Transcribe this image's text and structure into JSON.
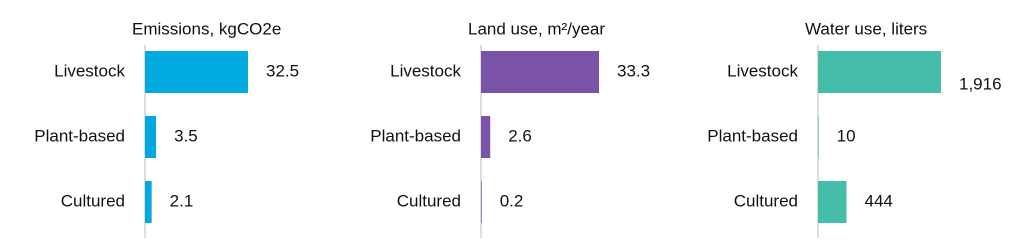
{
  "chart_data": [
    {
      "type": "bar",
      "orientation": "horizontal",
      "title": "Emissions, kgCO2e",
      "categories": [
        "Livestock",
        "Plant-based",
        "Cultured"
      ],
      "values": [
        32.5,
        3.5,
        2.1
      ],
      "color": "#00a9e0"
    },
    {
      "type": "bar",
      "orientation": "horizontal",
      "title": "Land use, m²/year",
      "categories": [
        "Livestock",
        "Plant-based",
        "Cultured"
      ],
      "values": [
        33.3,
        2.6,
        0.2
      ],
      "color": "#7a52a6"
    },
    {
      "type": "bar",
      "orientation": "horizontal",
      "title": "Water use, liters",
      "categories": [
        "Livestock",
        "Plant-based",
        "Cultured"
      ],
      "values": [
        1916,
        10,
        444
      ],
      "value_labels": [
        "1,916",
        "10",
        "444"
      ],
      "color": "#45bfac"
    }
  ]
}
